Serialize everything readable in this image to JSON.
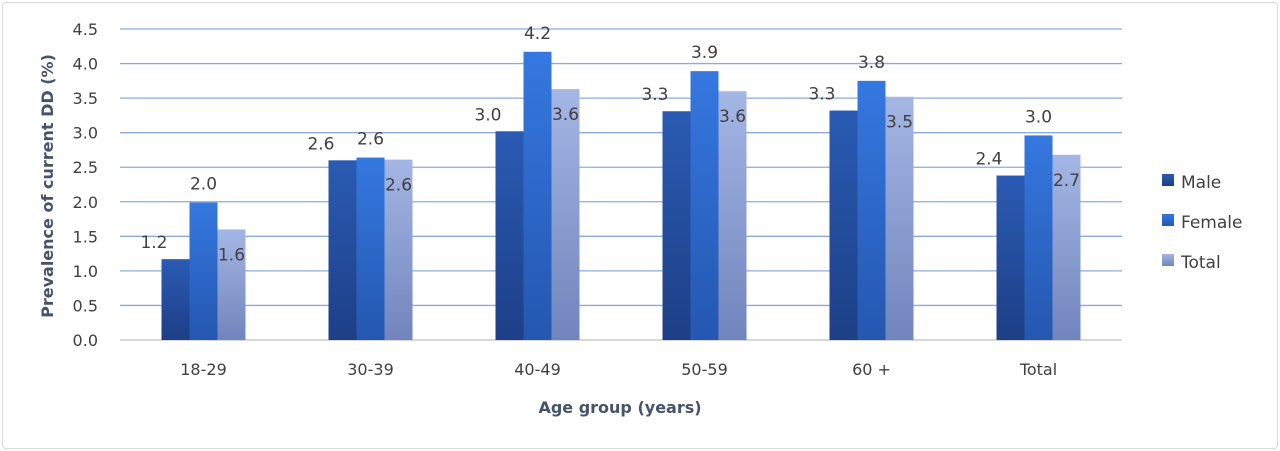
{
  "chart_data": {
    "type": "bar",
    "title": "",
    "xlabel": "Age group (years)",
    "ylabel": "Prevalence of current DD (%)",
    "ylim": [
      0,
      4.5
    ],
    "yticks": [
      "0.0",
      "0.5",
      "1.0",
      "1.5",
      "2.0",
      "2.5",
      "3.0",
      "3.5",
      "4.0",
      "4.5"
    ],
    "categories": [
      "18-29",
      "30-39",
      "40-49",
      "50-59",
      "60 +",
      "Total"
    ],
    "series": [
      {
        "name": "Male",
        "color": "#264f9e",
        "values": [
          1.17,
          2.6,
          3.02,
          3.31,
          3.32,
          2.38
        ],
        "labels": [
          "1.2",
          "2.6",
          "3.0",
          "3.3",
          "3.3",
          "2.4"
        ]
      },
      {
        "name": "Female",
        "color": "#2f6fd1",
        "values": [
          1.99,
          2.64,
          4.17,
          3.89,
          3.75,
          2.96
        ],
        "labels": [
          "2.0",
          "2.6",
          "4.2",
          "3.9",
          "3.8",
          "3.0"
        ]
      },
      {
        "name": "Total",
        "color": "#8fa3d6",
        "values": [
          1.6,
          2.61,
          3.63,
          3.6,
          3.52,
          2.68
        ],
        "labels": [
          "1.6",
          "2.6",
          "3.6",
          "3.6",
          "3.5",
          "2.7"
        ]
      }
    ],
    "grid": true,
    "legend": "right"
  }
}
